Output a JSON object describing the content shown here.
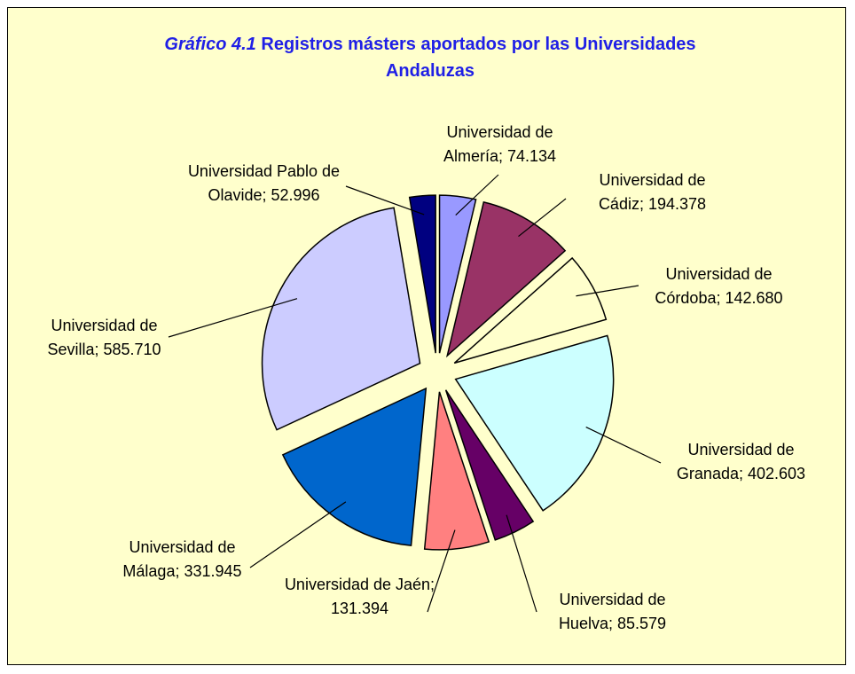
{
  "chart_data": {
    "type": "pie",
    "title_number": "Gráfico 4.1",
    "title": "Registros másters aportados por las Universidades Andaluzas",
    "categories": [
      "Universidad de Almería",
      "Universidad de Cádiz",
      "Universidad de Córdoba",
      "Universidad de Granada",
      "Universidad de Huelva",
      "Universidad de Jaén",
      "Universidad de Málaga",
      "Universidad de Sevilla",
      "Universidad Pablo de Olavide"
    ],
    "values": [
      74134,
      194378,
      142680,
      402603,
      85579,
      131394,
      331945,
      585710,
      52996
    ],
    "value_labels": [
      "74.134",
      "194.378",
      "142.680",
      "402.603",
      "85.579",
      "131.394",
      "331.945",
      "585.710",
      "52.996"
    ],
    "label_separator": "; ",
    "colors": [
      "#9999ff",
      "#993366",
      "#ffffcc",
      "#ccffff",
      "#660066",
      "#ff8080",
      "#0066cc",
      "#ccccff",
      "#000080"
    ]
  }
}
